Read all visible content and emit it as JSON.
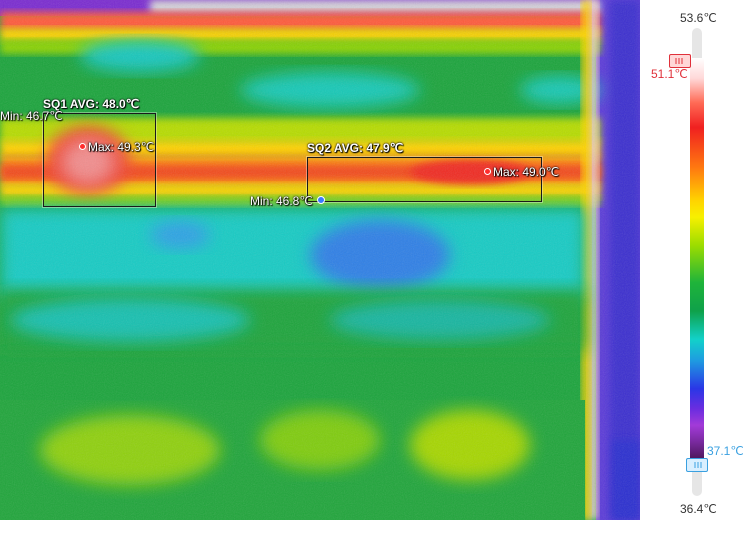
{
  "scale": {
    "max_label": "53.6℃",
    "min_label": "36.4℃",
    "upper_level_label": "51.1℃",
    "lower_level_label": "37.1℃",
    "colors": {
      "upper_handle": "#e0303a",
      "lower_handle": "#3aa0e0"
    }
  },
  "regions": [
    {
      "title": "SQ1 AVG: 48.0℃",
      "max_label": "Max: 49.3℃",
      "min_label": "Min: 46.7℃"
    },
    {
      "title": "SQ2 AVG: 47.9℃",
      "max_label": "Max: 49.0℃",
      "min_label": "Min: 46.8℃"
    }
  ],
  "icons": {
    "upper_handle": "slider-handle-icon",
    "lower_handle": "slider-handle-icon"
  }
}
